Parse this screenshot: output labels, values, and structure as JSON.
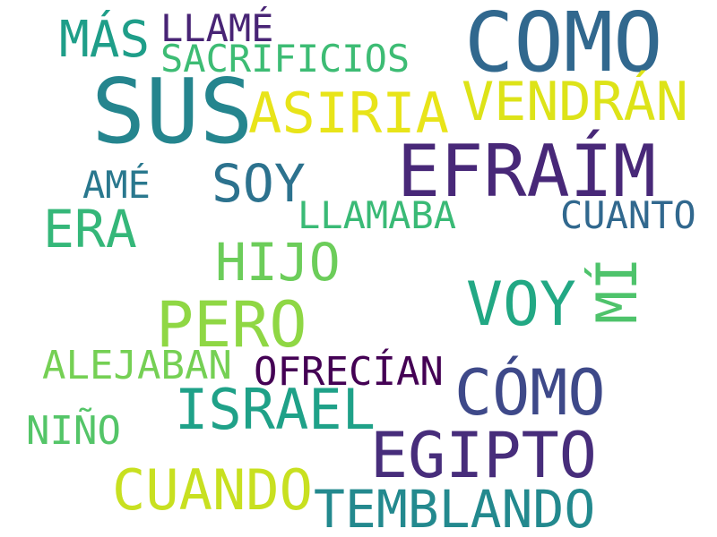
{
  "words": [
    {
      "text": "COMO",
      "color": "#31688e"
    },
    {
      "text": "SUS",
      "color": "#25858e"
    },
    {
      "text": "EFRAÍM",
      "color": "#482878"
    },
    {
      "text": "VENDRÁN",
      "color": "#dde318"
    },
    {
      "text": "ASIRIA",
      "color": "#e8e419"
    },
    {
      "text": "MÁS",
      "color": "#1f9e89"
    },
    {
      "text": "LLAMÉ",
      "color": "#482475"
    },
    {
      "text": "SACRIFICIOS",
      "color": "#3dbc74"
    },
    {
      "text": "SOY",
      "color": "#2c728e"
    },
    {
      "text": "AMÉ",
      "color": "#2a788e"
    },
    {
      "text": "ERA",
      "color": "#35b779"
    },
    {
      "text": "LLAMABA",
      "color": "#3aba76"
    },
    {
      "text": "CUANTO",
      "color": "#31688e"
    },
    {
      "text": "HIJO",
      "color": "#6ccd5a"
    },
    {
      "text": "MÍ",
      "color": "#4ec36b"
    },
    {
      "text": "VOY",
      "color": "#22a884"
    },
    {
      "text": "PERO",
      "color": "#8fd744"
    },
    {
      "text": "ALEJABAN",
      "color": "#75d054"
    },
    {
      "text": "OFRECÍAN",
      "color": "#440154"
    },
    {
      "text": "CÓMO",
      "color": "#3e4989"
    },
    {
      "text": "ISRAEL",
      "color": "#1fa188"
    },
    {
      "text": "NIÑO",
      "color": "#54c568"
    },
    {
      "text": "EGIPTO",
      "color": "#472d7b"
    },
    {
      "text": "CUANDO",
      "color": "#c8e020"
    },
    {
      "text": "TEMBLANDO",
      "color": "#23898e"
    }
  ]
}
